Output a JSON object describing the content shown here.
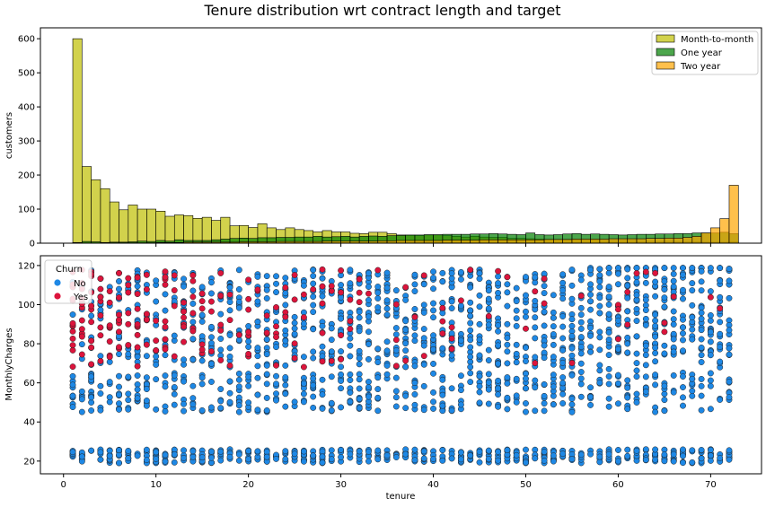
{
  "chart_data": {
    "title": "Tenure distribution wrt contract length and target",
    "charts": [
      {
        "type": "bar",
        "subtype": "stacked-histogram",
        "xlabel": "",
        "ylabel": "customers",
        "xlim": [
          -2.5,
          75.5
        ],
        "ylim": [
          0,
          632
        ],
        "yticks": [
          0,
          100,
          200,
          300,
          400,
          500,
          600
        ],
        "legend": "top-right",
        "legend_entries": [
          "Month-to-month",
          "One year",
          "Two year"
        ],
        "bin_start": 1,
        "bin_width": 1,
        "series": [
          {
            "name": "Month-to-month",
            "color": "#bfbf00",
            "values": [
              600,
              225,
              186,
              160,
              121,
              98,
              112,
              100,
              100,
              94,
              79,
              83,
              81,
              73,
              76,
              67,
              76,
              51,
              52,
              46,
              57,
              45,
              40,
              45,
              40,
              37,
              33,
              37,
              33,
              33,
              29,
              28,
              32,
              32,
              28,
              24,
              23,
              22,
              24,
              24,
              22,
              20,
              18,
              20,
              18,
              17,
              17,
              14,
              14,
              13,
              12,
              10,
              8,
              9,
              9,
              8,
              9,
              6,
              6,
              6,
              6,
              5,
              5,
              4,
              5,
              4,
              4,
              4,
              3,
              3,
              3,
              4
            ]
          },
          {
            "name": "One year",
            "color": "#008000",
            "values": [
              2,
              5,
              4,
              2,
              3,
              3,
              4,
              6,
              5,
              8,
              6,
              10,
              8,
              8,
              8,
              10,
              12,
              14,
              15,
              14,
              16,
              16,
              17,
              17,
              18,
              18,
              20,
              18,
              19,
              20,
              18,
              20,
              21,
              20,
              22,
              23,
              24,
              24,
              25,
              25,
              26,
              26,
              26,
              27,
              27,
              28,
              27,
              26,
              25,
              30,
              25,
              24,
              25,
              27,
              28,
              26,
              27,
              26,
              25,
              24,
              25,
              26,
              26,
              27,
              27,
              28,
              28,
              30,
              30,
              30,
              32,
              28
            ]
          },
          {
            "name": "Two year",
            "color": "#ffa500",
            "values": [
              0,
              0,
              0,
              0,
              1,
              1,
              1,
              1,
              1,
              2,
              2,
              2,
              3,
              3,
              3,
              3,
              3,
              3,
              4,
              4,
              4,
              4,
              5,
              5,
              5,
              5,
              5,
              6,
              6,
              6,
              6,
              6,
              6,
              7,
              7,
              8,
              8,
              8,
              8,
              8,
              9,
              9,
              9,
              9,
              10,
              10,
              10,
              10,
              10,
              10,
              10,
              11,
              11,
              11,
              12,
              12,
              12,
              12,
              13,
              13,
              13,
              13,
              14,
              14,
              15,
              15,
              17,
              20,
              30,
              45,
              72,
              170
            ]
          }
        ]
      },
      {
        "type": "scatter",
        "xlabel": "tenure",
        "ylabel": "MonthlyCharges",
        "xlim": [
          -2.5,
          75.5
        ],
        "ylim": [
          13.5,
          125
        ],
        "xticks": [
          0,
          10,
          20,
          30,
          40,
          50,
          60,
          70
        ],
        "yticks": [
          20,
          40,
          60,
          80,
          100,
          120
        ],
        "legend": "top-left",
        "legend_title": "Churn",
        "x_range": [
          1,
          72
        ],
        "y_range": [
          18.25,
          118.75
        ],
        "series": [
          {
            "name": "No",
            "color": "#1e88e5"
          },
          {
            "name": "Yes",
            "color": "#dc143c"
          }
        ]
      }
    ]
  }
}
